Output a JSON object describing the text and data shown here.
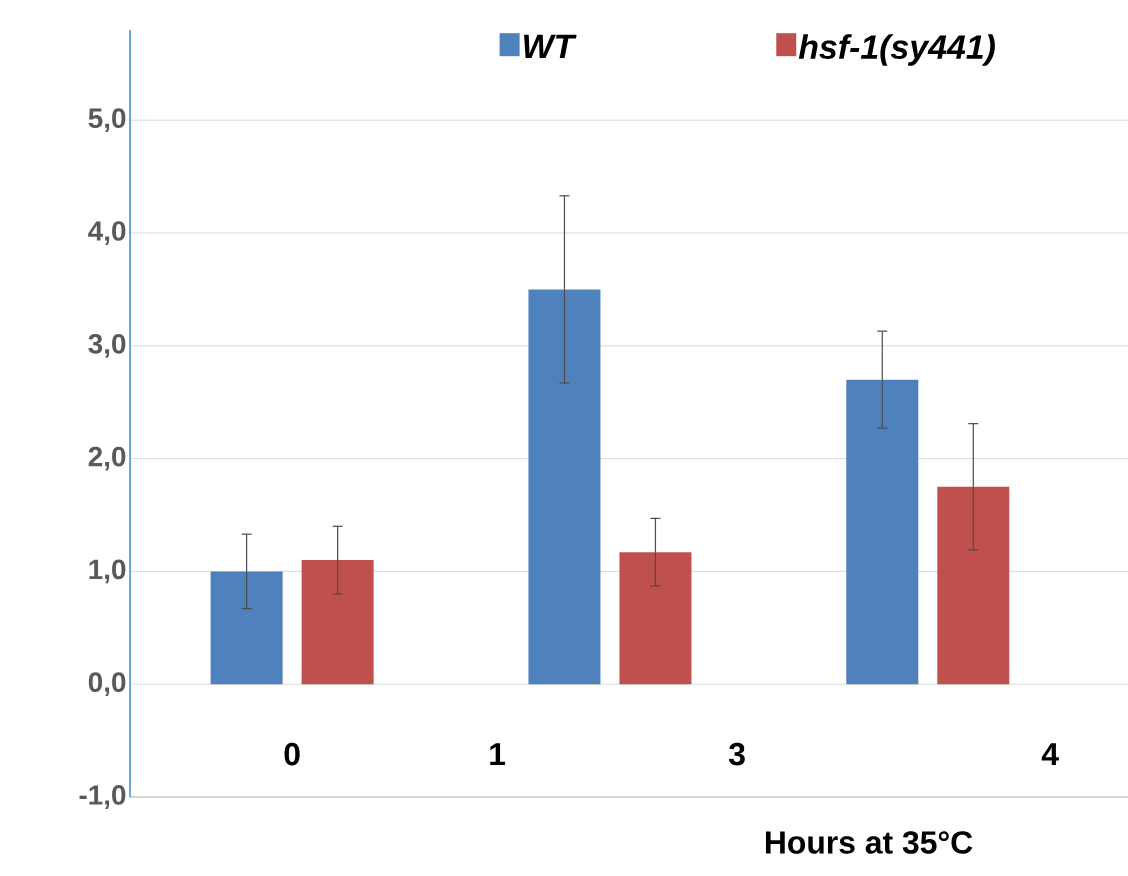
{
  "chart_data": {
    "type": "bar",
    "xlabel": "Hours at 35°C",
    "categories": [
      null,
      null,
      null
    ],
    "series": [
      {
        "name": "WT",
        "color": "#4f81bd",
        "values": [
          1.0,
          3.5,
          2.7
        ],
        "errors": [
          0.33,
          0.83,
          0.43
        ]
      },
      {
        "name": "hsf-1(sy441)",
        "color": "#c0504d",
        "values": [
          1.1,
          1.17,
          1.75
        ],
        "errors": [
          0.3,
          0.3,
          0.56
        ]
      }
    ],
    "ylim": [
      -1,
      5.8
    ],
    "yticks": [
      {
        "value": -1,
        "label": "-1,0"
      },
      {
        "value": 0,
        "label": "0,0"
      },
      {
        "value": 1,
        "label": "1,0"
      },
      {
        "value": 2,
        "label": "2,0"
      },
      {
        "value": 3,
        "label": "3,0"
      },
      {
        "value": 4,
        "label": "4,0"
      },
      {
        "value": 5,
        "label": "5,0"
      }
    ],
    "annotations": [
      "0",
      "1",
      "3",
      "4"
    ],
    "grid": "y",
    "legend": "top"
  }
}
